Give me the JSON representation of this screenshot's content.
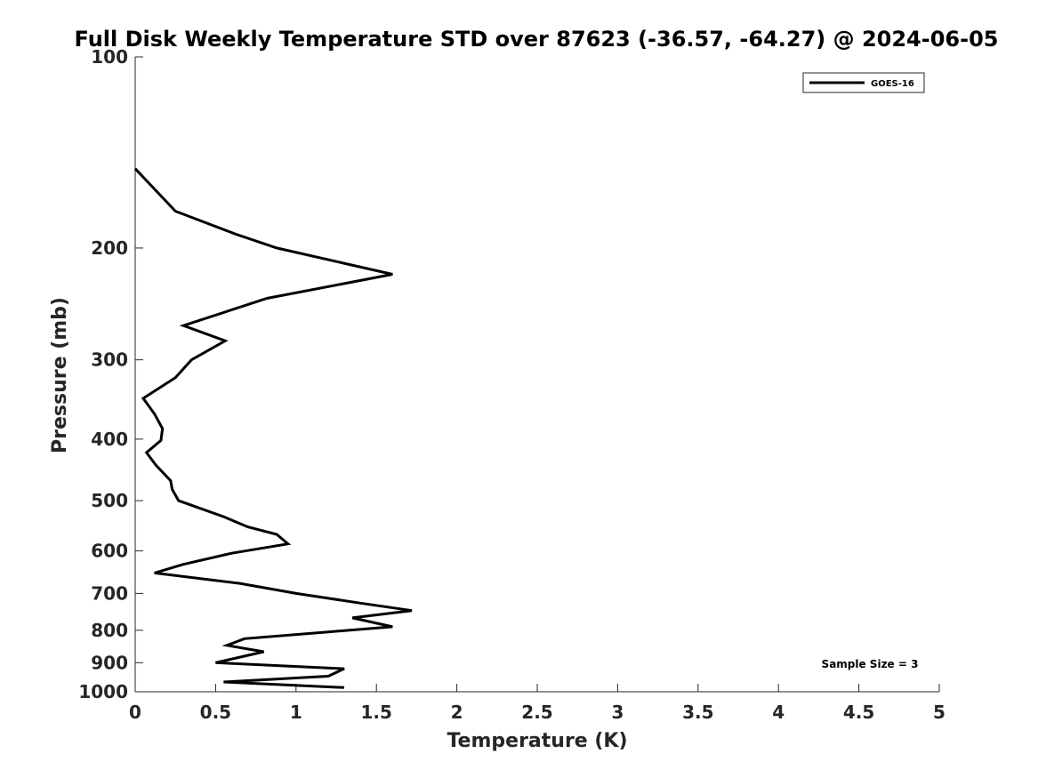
{
  "chart_data": {
    "type": "line",
    "title": "Full Disk Weekly Temperature STD over 87623 (-36.57, -64.27) @ 2024-06-05",
    "xlabel": "Temperature (K)",
    "ylabel": "Pressure (mb)",
    "xlim": [
      0,
      5
    ],
    "ylim": [
      100,
      1000
    ],
    "yscale": "log",
    "y_reversed": true,
    "xticks": [
      "0",
      "0.5",
      "1",
      "1.5",
      "2",
      "2.5",
      "3",
      "3.5",
      "4",
      "4.5",
      "5"
    ],
    "xtick_values": [
      0,
      0.5,
      1,
      1.5,
      2,
      2.5,
      3,
      3.5,
      4,
      4.5,
      5
    ],
    "yticks": [
      "100",
      "200",
      "300",
      "400",
      "500",
      "600",
      "700",
      "800",
      "900",
      "1000"
    ],
    "ytick_values": [
      100,
      200,
      300,
      400,
      500,
      600,
      700,
      800,
      900,
      1000
    ],
    "grid": false,
    "legend": {
      "position": "top-right",
      "entries": [
        "GOES-16"
      ]
    },
    "annotation": "Sample Size = 3",
    "series": [
      {
        "name": "GOES-16",
        "color": "#000000",
        "points": [
          [
            0.0,
            150
          ],
          [
            0.25,
            175
          ],
          [
            0.62,
            190
          ],
          [
            0.88,
            200
          ],
          [
            1.6,
            220
          ],
          [
            0.82,
            240
          ],
          [
            0.3,
            265
          ],
          [
            0.56,
            280
          ],
          [
            0.35,
            300
          ],
          [
            0.25,
            320
          ],
          [
            0.05,
            345
          ],
          [
            0.12,
            365
          ],
          [
            0.17,
            385
          ],
          [
            0.16,
            402
          ],
          [
            0.07,
            420
          ],
          [
            0.13,
            440
          ],
          [
            0.22,
            465
          ],
          [
            0.23,
            480
          ],
          [
            0.27,
            500
          ],
          [
            0.55,
            530
          ],
          [
            0.7,
            550
          ],
          [
            0.88,
            565
          ],
          [
            0.95,
            585
          ],
          [
            0.6,
            605
          ],
          [
            0.3,
            630
          ],
          [
            0.12,
            650
          ],
          [
            0.65,
            675
          ],
          [
            1.0,
            700
          ],
          [
            1.4,
            725
          ],
          [
            1.72,
            745
          ],
          [
            1.35,
            765
          ],
          [
            1.6,
            790
          ],
          [
            1.2,
            805
          ],
          [
            0.68,
            825
          ],
          [
            0.57,
            845
          ],
          [
            0.8,
            865
          ],
          [
            0.5,
            900
          ],
          [
            1.3,
            920
          ],
          [
            1.2,
            945
          ],
          [
            0.55,
            965
          ],
          [
            1.3,
            985
          ]
        ]
      }
    ]
  }
}
